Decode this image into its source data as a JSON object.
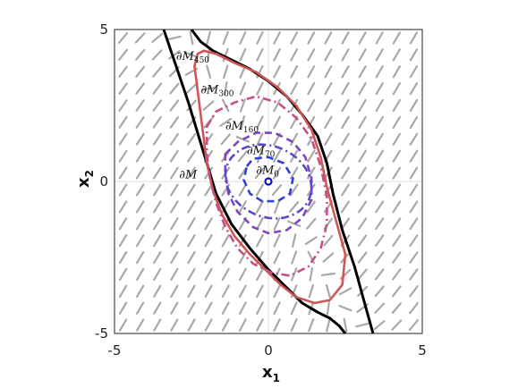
{
  "chart_data": {
    "type": "line",
    "xlabel": "x",
    "xlabel_sub": "1",
    "ylabel": "x",
    "ylabel_sub": "2",
    "xlim": [
      -5,
      5
    ],
    "ylim": [
      -5,
      5
    ],
    "xticks": [
      "-5",
      "0",
      "5"
    ],
    "yticks": [
      "-5",
      "0",
      "5"
    ],
    "grid": true,
    "origin_marker": {
      "x": 0,
      "y": 0,
      "color": "#1010c8"
    },
    "vector_field": {
      "color": "#a8a8a8",
      "nx": 18,
      "ny": 18,
      "field": "linear",
      "A": [
        [
          -1,
          -0.5
        ],
        [
          -1.6,
          -1
        ]
      ]
    },
    "curves": [
      {
        "name": "∂M",
        "label_main": "∂M",
        "label_sub": "",
        "style": "solid",
        "color": "#000000",
        "closed": false,
        "x": [
          -3.4,
          -3.0,
          -2.6,
          -2.3,
          -2.0,
          -1.7,
          -1.2,
          -0.6,
          0.0,
          0.6,
          1.1,
          1.6,
          2.0,
          2.3,
          2.5
        ],
        "y": [
          5.0,
          3.8,
          2.6,
          1.6,
          0.6,
          -0.4,
          -1.4,
          -2.2,
          -2.9,
          -3.5,
          -4.0,
          -4.3,
          -4.5,
          -4.75,
          -5.0
        ],
        "x2": [
          -2.5,
          -2.2,
          -1.8,
          -1.2,
          -0.6,
          0.0,
          0.6,
          1.1,
          1.6,
          1.9,
          2.1,
          2.4,
          2.8,
          3.1,
          3.4
        ],
        "y2": [
          5.0,
          4.6,
          4.3,
          4.0,
          3.7,
          3.3,
          2.8,
          2.2,
          1.5,
          0.6,
          -0.4,
          -1.6,
          -2.8,
          -3.9,
          -5.0
        ]
      },
      {
        "name": "∂M450",
        "label_main": "∂M",
        "label_sub": "450",
        "style": "solid",
        "color": "#d05555",
        "closed": true,
        "x": [
          -2.4,
          -2.3,
          -2.1,
          -1.7,
          -1.1,
          -0.4,
          0.3,
          0.9,
          1.4,
          1.7,
          1.9,
          2.2,
          2.5,
          2.4,
          2.0,
          1.5,
          0.9,
          0.4,
          -0.1,
          -0.6,
          -1.1,
          -1.5,
          -1.8,
          -2.0,
          -2.1,
          -2.2,
          -2.3,
          -2.4
        ],
        "y": [
          3.8,
          4.2,
          4.3,
          4.2,
          3.9,
          3.6,
          3.1,
          2.5,
          1.7,
          0.8,
          -0.2,
          -1.3,
          -2.4,
          -3.4,
          -3.9,
          -4.0,
          -3.8,
          -3.4,
          -2.9,
          -2.4,
          -1.8,
          -1.1,
          -0.3,
          0.6,
          1.4,
          2.2,
          3.0,
          3.8
        ]
      },
      {
        "name": "∂M300",
        "label_main": "∂M",
        "label_sub": "300",
        "style": "dashdot",
        "color": "#c4508a",
        "closed": true,
        "x": [
          -2.0,
          -1.7,
          -1.1,
          -0.4,
          0.3,
          0.9,
          1.4,
          1.7,
          1.9,
          1.9,
          1.7,
          1.3,
          0.7,
          0.1,
          -0.5,
          -1.0,
          -1.4,
          -1.7,
          -1.9,
          -2.0,
          -2.0
        ],
        "y": [
          1.8,
          2.3,
          2.6,
          2.8,
          2.6,
          2.1,
          1.4,
          0.5,
          -0.5,
          -1.4,
          -2.2,
          -2.8,
          -3.1,
          -3.0,
          -2.7,
          -2.2,
          -1.5,
          -0.7,
          0.1,
          0.9,
          1.8
        ]
      },
      {
        "name": "∂M160",
        "label_main": "∂M",
        "label_sub": "160",
        "style": "dashed",
        "color": "#8044c0",
        "closed": true,
        "x": [
          -1.4,
          -1.0,
          -0.4,
          0.2,
          0.8,
          1.2,
          1.4,
          1.4,
          1.1,
          0.6,
          0.0,
          -0.5,
          -1.0,
          -1.3,
          -1.4,
          -1.4
        ],
        "y": [
          0.9,
          1.3,
          1.6,
          1.6,
          1.3,
          0.8,
          0.1,
          -0.6,
          -1.2,
          -1.6,
          -1.7,
          -1.5,
          -1.0,
          -0.4,
          0.3,
          0.9
        ]
      },
      {
        "name": "∂M70",
        "label_main": "∂M",
        "label_sub": "70",
        "style": "dashdot",
        "color": "#5a48c8",
        "closed": true,
        "label_only": true,
        "x": [],
        "y": []
      },
      {
        "name": "∂M0",
        "label_main": "∂M",
        "label_sub": "0",
        "style": "dashed",
        "color": "#3040d0",
        "closed": true,
        "x": [
          -0.7,
          -0.5,
          0.0,
          0.5,
          0.8,
          0.7,
          0.3,
          -0.2,
          -0.6,
          -0.8,
          -0.7
        ],
        "y": [
          0.5,
          0.75,
          0.8,
          0.6,
          0.1,
          -0.4,
          -0.65,
          -0.65,
          -0.4,
          0.05,
          0.5
        ]
      }
    ]
  }
}
